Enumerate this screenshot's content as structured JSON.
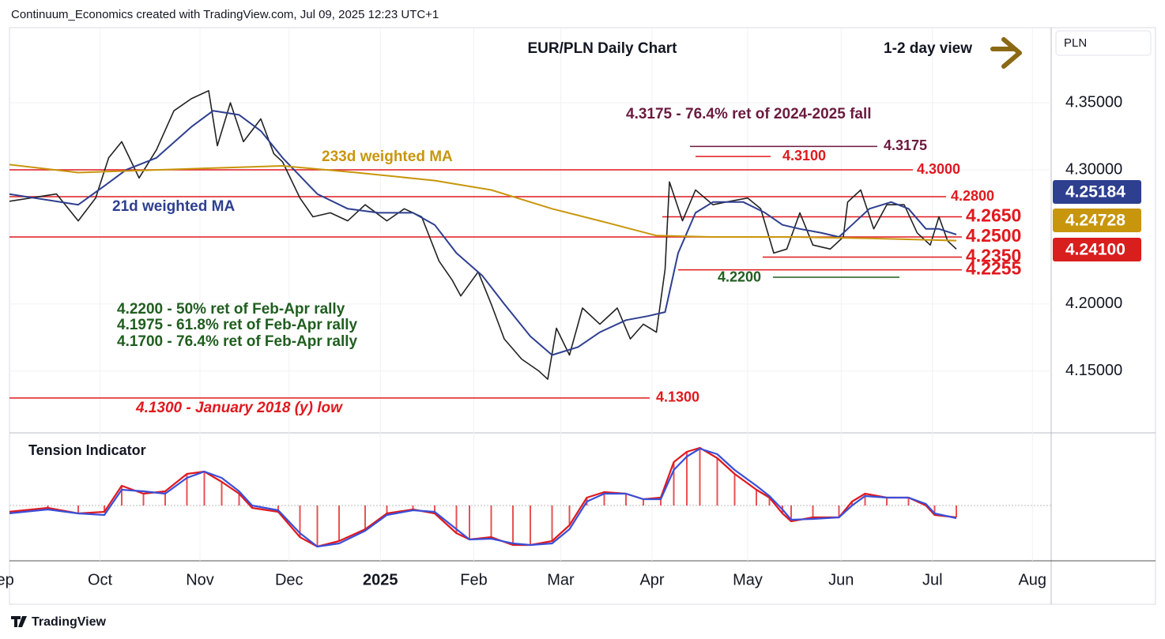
{
  "header": {
    "credit": "Continuum_Economics created with TradingView.com, Jul 09, 2025 12:23 UTC+1",
    "view": "1-2 day view",
    "currency": "PLN"
  },
  "footer": "TradingView",
  "chart_data": [
    {
      "type": "line",
      "title": "EUR/PLN Daily Chart",
      "series": [
        {
          "color": "#222222",
          "badge_color": "#d91e1e",
          "last_label": "4.24100",
          "x": [
            0,
            5,
            11,
            16,
            20,
            23,
            26,
            30,
            34,
            38,
            42,
            46,
            48,
            51,
            54,
            58,
            61,
            63,
            67,
            70,
            74,
            78,
            82,
            87,
            91,
            95,
            99,
            102,
            104,
            108,
            111,
            114,
            118,
            122,
            124,
            126,
            129,
            132,
            136,
            140,
            143,
            146,
            149,
            151,
            152,
            155,
            158,
            162,
            165,
            170,
            173,
            176,
            179,
            182,
            185,
            189,
            192,
            193,
            196,
            199,
            202,
            206,
            209,
            212,
            214,
            216,
            218
          ],
          "values": [
            4.2765,
            4.279,
            4.282,
            4.262,
            4.279,
            4.309,
            4.321,
            4.294,
            4.315,
            4.344,
            4.353,
            4.359,
            4.318,
            4.35,
            4.321,
            4.338,
            4.312,
            4.306,
            4.279,
            4.265,
            4.268,
            4.262,
            4.274,
            4.262,
            4.271,
            4.265,
            4.232,
            4.218,
            4.206,
            4.224,
            4.2,
            4.174,
            4.159,
            4.15,
            4.144,
            4.182,
            4.162,
            4.197,
            4.185,
            4.197,
            4.174,
            4.185,
            4.179,
            4.226,
            4.291,
            4.262,
            4.285,
            4.274,
            4.276,
            4.279,
            4.271,
            4.238,
            4.241,
            4.268,
            4.244,
            4.241,
            4.25,
            4.276,
            4.285,
            4.256,
            4.274,
            4.274,
            4.253,
            4.244,
            4.265,
            4.247,
            4.241
          ]
        },
        {
          "name": "21d weighted MA",
          "color": "#2e3f8f",
          "badge_color": "#2e3f8f",
          "last_label": "4.25184",
          "x": [
            0,
            16,
            22,
            27,
            34,
            42,
            47,
            53,
            58,
            63,
            71,
            78,
            85,
            93,
            98,
            103,
            109,
            114,
            120,
            125,
            131,
            136,
            142,
            147,
            151,
            154,
            158,
            162,
            169,
            174,
            178,
            182,
            187,
            191,
            194,
            198,
            203,
            207,
            211,
            214,
            218
          ],
          "values": [
            4.282,
            4.274,
            4.288,
            4.3,
            4.309,
            4.332,
            4.344,
            4.341,
            4.329,
            4.309,
            4.282,
            4.271,
            4.268,
            4.268,
            4.259,
            4.238,
            4.221,
            4.2,
            4.176,
            4.162,
            4.168,
            4.179,
            4.188,
            4.191,
            4.194,
            4.238,
            4.268,
            4.276,
            4.276,
            4.268,
            4.259,
            4.256,
            4.253,
            4.25,
            4.259,
            4.271,
            4.276,
            4.271,
            4.256,
            4.256,
            4.25184
          ]
        },
        {
          "name": "233d weighted MA",
          "color": "#c8960c",
          "badge_color": "#c8960c",
          "last_label": "4.24728",
          "x": [
            0,
            16,
            34,
            53,
            63,
            80,
            98,
            111,
            125,
            136,
            149,
            162,
            180,
            198,
            218
          ],
          "values": [
            4.304,
            4.298,
            4.3,
            4.302,
            4.303,
            4.298,
            4.292,
            4.285,
            4.271,
            4.262,
            4.251,
            4.25,
            4.25,
            4.249,
            4.24728
          ]
        }
      ],
      "levels": [
        {
          "value": 4.3175,
          "label": "4.3175",
          "color": "#6b1a3f"
        },
        {
          "value": 4.31,
          "label": "4.3100",
          "color": "#e0191e"
        },
        {
          "value": 4.3,
          "label": "4.3000",
          "color": "#e0191e"
        },
        {
          "value": 4.28,
          "label": "4.2800",
          "color": "#e0191e"
        },
        {
          "value": 4.265,
          "label": "4.2650",
          "color": "#e0191e"
        },
        {
          "value": 4.25,
          "label": "4.2500",
          "color": "#e0191e"
        },
        {
          "value": 4.235,
          "label": "4.2350",
          "color": "#e0191e"
        },
        {
          "value": 4.2255,
          "label": "4.2255",
          "color": "#e0191e"
        },
        {
          "value": 4.22,
          "label": "4.2200",
          "color": "#1f5e1f"
        },
        {
          "value": 4.13,
          "label": "4.1300",
          "color": "#e0191e"
        }
      ],
      "annotations": [
        {
          "text": "4.3175 - 76.4% ret of 2024-2025 fall",
          "color": "#6b1a3f"
        },
        {
          "text": "4.2200 - 50% ret of Feb-Apr rally",
          "color": "#1f5e1f"
        },
        {
          "text": "4.1975 - 61.8% ret of Feb-Apr rally",
          "color": "#1f5e1f"
        },
        {
          "text": "4.1700 - 76.4% ret of Feb-Apr rally",
          "color": "#1f5e1f"
        },
        {
          "text": "4.1300 - January 2018 (y) low",
          "color": "#e0191e"
        }
      ],
      "xlim": [
        -2,
        240
      ],
      "xticks": [
        {
          "value": -2,
          "label": "Sep"
        },
        {
          "value": 21,
          "label": "Oct"
        },
        {
          "value": 44,
          "label": "Nov"
        },
        {
          "value": 64.5,
          "label": "Dec"
        },
        {
          "value": 85.5,
          "label": "2025"
        },
        {
          "value": 107,
          "label": "Feb"
        },
        {
          "value": 127,
          "label": "Mar"
        },
        {
          "value": 148,
          "label": "Apr"
        },
        {
          "value": 170,
          "label": "May"
        },
        {
          "value": 191.5,
          "label": "Jun"
        },
        {
          "value": 212.5,
          "label": "Jul"
        },
        {
          "value": 235.5,
          "label": "Aug"
        }
      ],
      "ylim": [
        4.104,
        4.406
      ],
      "yticks": [
        {
          "value": 4.35,
          "label": "4.35000"
        },
        {
          "value": 4.3,
          "label": "4.30000"
        },
        {
          "value": 4.2,
          "label": "4.20000"
        },
        {
          "value": 4.15,
          "label": "4.15000"
        }
      ],
      "grid": true
    },
    {
      "type": "indicator",
      "title": "Tension Indicator",
      "x": [
        0,
        9,
        16,
        22,
        26,
        31,
        36,
        41,
        45,
        49,
        53,
        56,
        62,
        67,
        71,
        76,
        82,
        87,
        93,
        98,
        103,
        106,
        111,
        116,
        120,
        125,
        129,
        133,
        137,
        142,
        146,
        150,
        153,
        156,
        159,
        163,
        167,
        172,
        175,
        178,
        180,
        185,
        191,
        194,
        197,
        202,
        207,
        211,
        213,
        218
      ],
      "series": [
        {
          "color": "#e0191e",
          "histogram": true,
          "values": [
            -8,
            -3,
            -10,
            -8,
            25,
            15,
            18,
            40,
            43,
            30,
            15,
            -3,
            -8,
            -40,
            -52,
            -45,
            -30,
            -10,
            -5,
            -10,
            -35,
            -43,
            -40,
            -50,
            -50,
            -45,
            -25,
            10,
            17,
            15,
            8,
            10,
            55,
            68,
            73,
            60,
            40,
            20,
            10,
            -10,
            -20,
            -15,
            -15,
            5,
            15,
            10,
            10,
            0,
            -12,
            -15
          ]
        },
        {
          "color": "#3a4fd8",
          "values": [
            -10,
            -5,
            -10,
            -12,
            20,
            18,
            15,
            35,
            43,
            35,
            18,
            0,
            -6,
            -35,
            -52,
            -48,
            -32,
            -12,
            -6,
            -8,
            -30,
            -43,
            -42,
            -48,
            -50,
            -48,
            -30,
            5,
            15,
            15,
            8,
            8,
            45,
            62,
            72,
            65,
            45,
            25,
            12,
            -5,
            -18,
            -17,
            -15,
            0,
            12,
            10,
            10,
            2,
            -10,
            -16
          ]
        }
      ],
      "ylim": [
        -70,
        85
      ]
    }
  ]
}
